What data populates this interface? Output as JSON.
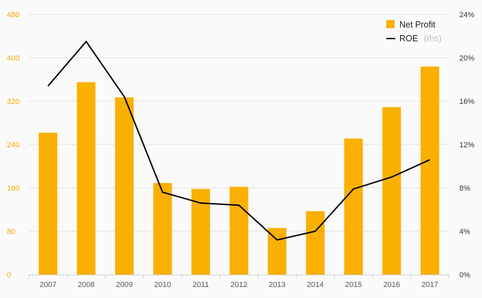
{
  "chart_data": {
    "type": "bar",
    "categories": [
      "2007",
      "2008",
      "2009",
      "2010",
      "2011",
      "2012",
      "2013",
      "2014",
      "2015",
      "2016",
      "2017"
    ],
    "series": [
      {
        "name": "Net Profit",
        "type": "bar",
        "axis": "left",
        "color": "#f9b000",
        "values": [
          262,
          355,
          327,
          169,
          158,
          162,
          86,
          117,
          251,
          309,
          384
        ]
      },
      {
        "name": "ROE",
        "type": "line",
        "axis": "right",
        "color": "#000000",
        "values": [
          17.4,
          21.5,
          16.4,
          7.6,
          6.6,
          6.4,
          3.2,
          4.0,
          7.9,
          9.0,
          10.6
        ]
      }
    ],
    "y_left": {
      "range": [
        0,
        480
      ],
      "ticks": [
        "0",
        "80",
        "160",
        "240",
        "320",
        "400",
        "480"
      ]
    },
    "y_right": {
      "range": [
        0,
        24
      ],
      "ticks": [
        "0%",
        "4%",
        "8%",
        "12%",
        "16%",
        "20%",
        "24%"
      ]
    },
    "grid": true,
    "legend": {
      "position": "top-right",
      "entries": [
        {
          "label": "Net Profit",
          "suffix": ""
        },
        {
          "label": "ROE",
          "suffix": "(rhs)"
        }
      ]
    }
  }
}
